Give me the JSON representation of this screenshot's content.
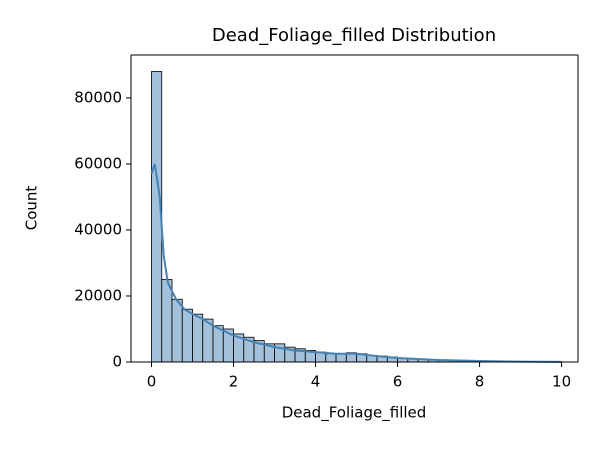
{
  "chart_data": {
    "type": "histogram",
    "title": "Dead_Foliage_filled Distribution",
    "x_label": "Dead_Foliage_filled",
    "y_label": "Count",
    "bins": [
      0,
      0.25,
      0.5,
      0.75,
      1,
      1.25,
      1.5,
      1.75,
      2,
      2.25,
      2.5,
      2.75,
      3,
      3.25,
      3.5,
      3.75,
      4,
      4.25,
      4.5,
      4.75,
      5,
      5.25,
      5.5,
      5.75,
      6,
      6.25,
      6.5,
      6.75,
      7,
      7.25,
      7.5,
      7.75,
      8,
      8.25,
      8.5,
      8.75,
      9,
      9.25,
      9.5,
      9.75,
      10
    ],
    "counts": [
      88000,
      25000,
      19000,
      16000,
      14500,
      13000,
      11000,
      10000,
      8500,
      7500,
      6500,
      5500,
      5500,
      4500,
      4000,
      3500,
      3000,
      2500,
      2500,
      2800,
      2500,
      2000,
      1800,
      1500,
      1200,
      1000,
      800,
      700,
      600,
      500,
      500,
      400,
      300,
      250,
      200,
      150,
      100,
      80,
      60,
      50
    ],
    "color": "#a3c1da",
    "edge_color": "#000000",
    "kde": {
      "color": "#4682b4",
      "x": [
        0,
        0.08,
        0.2,
        0.3,
        0.4,
        0.6,
        0.8,
        1,
        1.25,
        1.5,
        2,
        2.5,
        3,
        3.5,
        4,
        4.5,
        5,
        5.5,
        6,
        7,
        8,
        9,
        10
      ],
      "values": [
        57000,
        60000,
        50000,
        32000,
        24000,
        19000,
        16000,
        14500,
        13000,
        11000,
        8000,
        6000,
        4500,
        3500,
        3000,
        2500,
        2500,
        1800,
        1200,
        600,
        300,
        100,
        30
      ]
    },
    "xlim": [
      -0.5,
      10.4
    ],
    "ylim": [
      0,
      93000
    ],
    "xticks": [
      0,
      2,
      4,
      6,
      8,
      10
    ],
    "yticks": [
      0,
      20000,
      40000,
      60000,
      80000
    ]
  }
}
